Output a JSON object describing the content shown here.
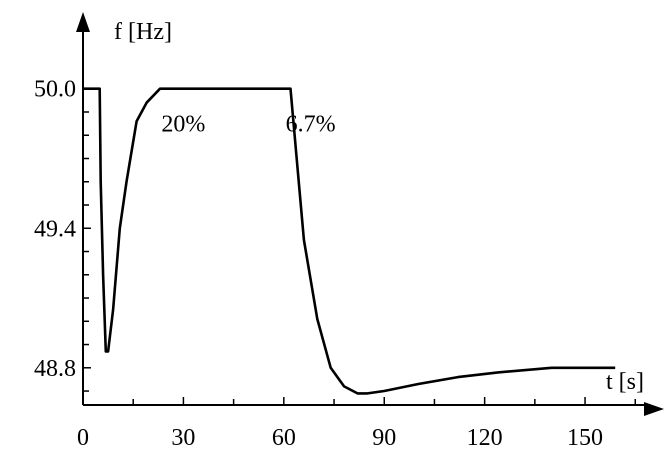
{
  "chart_data": {
    "type": "line",
    "title": "",
    "xlabel": "t [s]",
    "ylabel": "f [Hz]",
    "xlim": [
      0,
      170
    ],
    "ylim": [
      48.64,
      50.33
    ],
    "x_ticks": [
      0,
      30,
      60,
      90,
      120,
      150
    ],
    "x_tick_labels": [
      "0",
      "30",
      "60",
      "90",
      "120",
      "150"
    ],
    "x_minor_step": 15,
    "y_ticks": [
      48.8,
      49.4,
      50.0
    ],
    "y_tick_labels": [
      "48.8",
      "49.4",
      "50.0"
    ],
    "y_minor_step": 0.1,
    "grid": false,
    "annotations": [
      {
        "text": "20%",
        "x": 30,
        "y": 49.85
      },
      {
        "text": "6.7%",
        "x": 68,
        "y": 49.85
      }
    ],
    "series": [
      {
        "x": [
          0,
          5,
          5.3,
          6,
          6.8,
          7.5,
          9,
          11,
          13,
          16,
          19,
          23,
          30,
          40,
          50,
          62,
          66,
          70,
          74,
          78,
          82,
          85,
          90,
          100,
          112,
          124,
          140,
          159
        ],
        "y": [
          50.0,
          50.0,
          49.6,
          49.2,
          48.87,
          48.87,
          49.05,
          49.4,
          49.6,
          49.86,
          49.94,
          50.0,
          50.0,
          50.0,
          50.0,
          50.0,
          49.35,
          49.01,
          48.8,
          48.72,
          48.69,
          48.69,
          48.7,
          48.73,
          48.76,
          48.78,
          48.8,
          48.8
        ]
      }
    ]
  }
}
